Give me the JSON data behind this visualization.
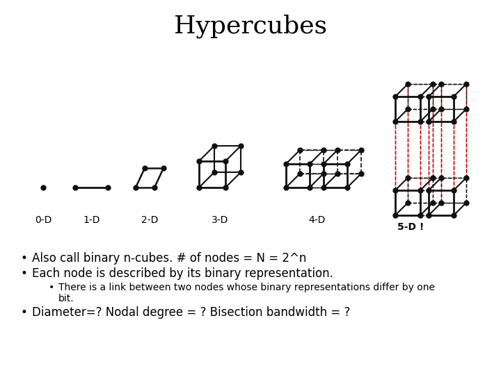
{
  "title": "Hypercubes",
  "title_fontsize": 26,
  "title_fontfamily": "DejaVu Serif",
  "bullet1": "Also call binary n-cubes. # of nodes = N = 2^n",
  "bullet2": "Each node is described by its binary representation.",
  "sub_bullet_line1": "There is a link between two nodes whose binary representations differ by one",
  "sub_bullet_line2": "bit.",
  "bullet3": "Diameter=? Nodal degree = ? Bisection bandwidth = ?",
  "label_0d": "0-D",
  "label_1d": "1-D",
  "label_2d": "2-D",
  "label_3d": "3-D",
  "label_4d": "4-D",
  "label_5d": "5-D !",
  "node_color": "#111111",
  "edge_color": "#111111",
  "red_edge_color": "#cc0000",
  "background_color": "#ffffff",
  "text_color": "#000000",
  "bullet_fontsize": 12,
  "sub_bullet_fontsize": 10,
  "label_fontsize": 10
}
